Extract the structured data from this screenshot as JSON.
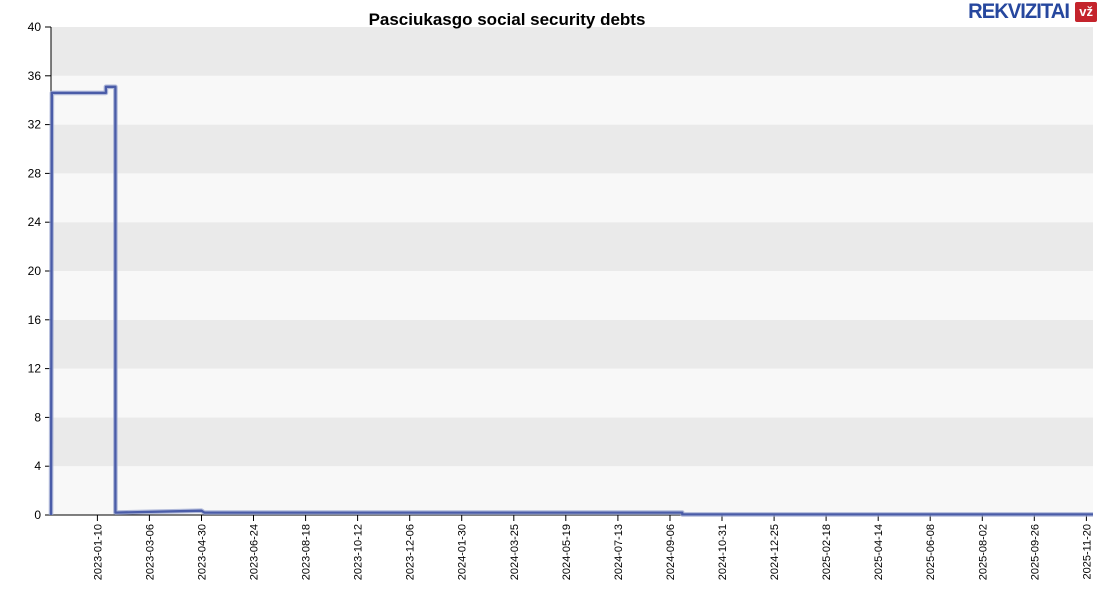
{
  "logo": {
    "brand": "REKVIZITAI",
    "badge": "vž",
    "brand_color": "#26479e",
    "badge_color": "#c4242c"
  },
  "chart_data": {
    "type": "line",
    "title": "Pasciukasgo social security debts",
    "xlabel": "",
    "ylabel": "",
    "ylim": [
      0,
      40
    ],
    "y_ticks": [
      0,
      4,
      8,
      12,
      16,
      20,
      24,
      28,
      32,
      36,
      40
    ],
    "x_domain": [
      "2022-11-22",
      "2025-11-27"
    ],
    "x_tick_labels": [
      "2023-01-10",
      "2023-03-06",
      "2023-04-30",
      "2023-06-24",
      "2023-08-18",
      "2023-10-12",
      "2023-12-06",
      "2024-01-30",
      "2024-03-25",
      "2024-05-19",
      "2024-07-13",
      "2024-09-06",
      "2024-10-31",
      "2024-12-25",
      "2025-02-18",
      "2025-04-14",
      "2025-06-08",
      "2025-08-02",
      "2025-09-26",
      "2025-11-20"
    ],
    "legend": "none",
    "grid": "alternating horizontal bands, no vertical gridlines",
    "series": [
      {
        "name": "Pasciukasgo social security debts",
        "points": [
          {
            "x": "2022-11-22",
            "y": 0
          },
          {
            "x": "2022-11-23",
            "y": 34.6
          },
          {
            "x": "2023-01-19",
            "y": 34.6
          },
          {
            "x": "2023-01-19",
            "y": 35.1
          },
          {
            "x": "2023-01-29",
            "y": 35.1
          },
          {
            "x": "2023-01-29",
            "y": 0.2
          },
          {
            "x": "2023-04-30",
            "y": 0.35
          },
          {
            "x": "2023-05-03",
            "y": 0.2
          },
          {
            "x": "2024-09-19",
            "y": 0.2
          },
          {
            "x": "2024-09-19",
            "y": 0.05
          },
          {
            "x": "2025-11-27",
            "y": 0.05
          }
        ]
      }
    ],
    "colors": {
      "line": "#4a5ca8",
      "line_halo": "#9aa6d0",
      "band_gray": "#eaeaea",
      "band_light": "#f8f8f8",
      "axis": "#000000"
    }
  }
}
